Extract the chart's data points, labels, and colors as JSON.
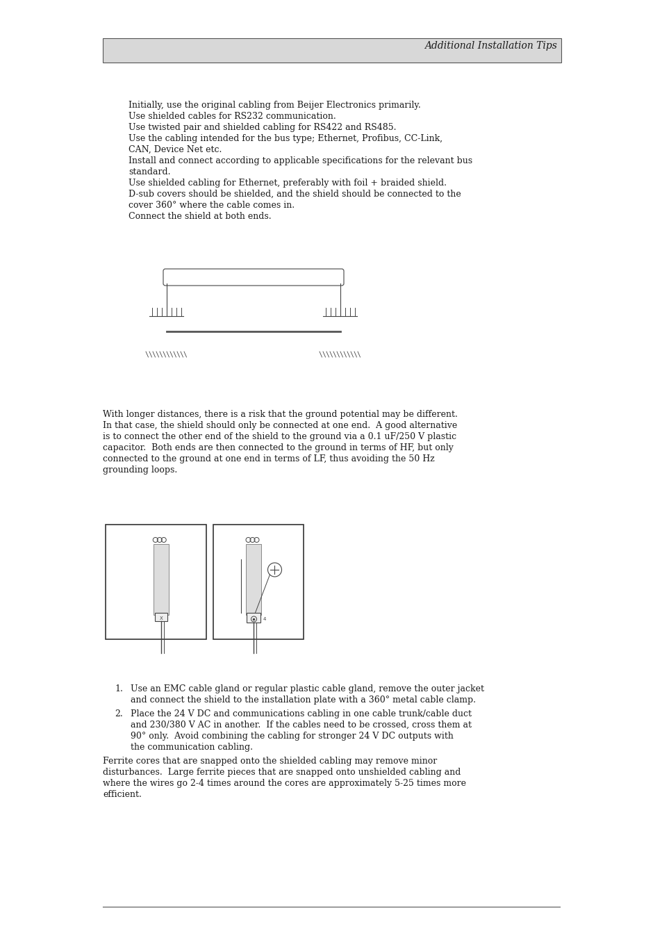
{
  "background_color": "#ffffff",
  "header_text": "Additional Installation Tips",
  "header_bg": "#d8d8d8",
  "header_font_size": 10,
  "body_font_size": 9.0,
  "body_font": "DejaVu Serif",
  "bullet_lines": [
    "Initially, use the original cabling from Beijer Electronics primarily.",
    "Use shielded cables for RS232 communication.",
    "Use twisted pair and shielded cabling for RS422 and RS485.",
    "Use the cabling intended for the bus type; Ethernet, Profibus, CC-Link,",
    "CAN, Device Net etc.",
    "Install and connect according to applicable specifications for the relevant bus",
    "standard.",
    "Use shielded cabling for Ethernet, preferably with foil + braided shield.",
    "D-sub covers should be shielded, and the shield should be connected to the",
    "cover 360° where the cable comes in.",
    "Connect the shield at both ends."
  ],
  "paragraph2": "With longer distances, there is a risk that the ground potential may be different.\nIn that case, the shield should only be connected at one end.  A good alternative\nis to connect the other end of the shield to the ground via a 0.1 uF/250 V plastic\ncapacitor.  Both ends are then connected to the ground in terms of HF, but only\nconnected to the ground at one end in terms of LF, thus avoiding the 50 Hz\ngrounding loops.",
  "list_item1_line1": "Use an EMC cable gland or regular plastic cable gland, remove the outer jacket",
  "list_item1_line2": "and connect the shield to the installation plate with a 360° metal cable clamp.",
  "list_item2_line1": "Place the 24 V DC and communications cabling in one cable trunk/cable duct",
  "list_item2_line2": "and 230/380 V AC in another.  If the cables need to be crossed, cross them at",
  "list_item2_line3": "90° only.  Avoid combining the cabling for stronger 24 V DC outputs with",
  "list_item2_line4": "the communication cabling.",
  "paragraph3_line1": "Ferrite cores that are snapped onto the shielded cabling may remove minor",
  "paragraph3_line2": "disturbances.  Large ferrite pieces that are snapped onto unshielded cabling and",
  "paragraph3_line3": "where the wires go 2-4 times around the cores are approximately 5-25 times more",
  "paragraph3_line4": "efficient."
}
